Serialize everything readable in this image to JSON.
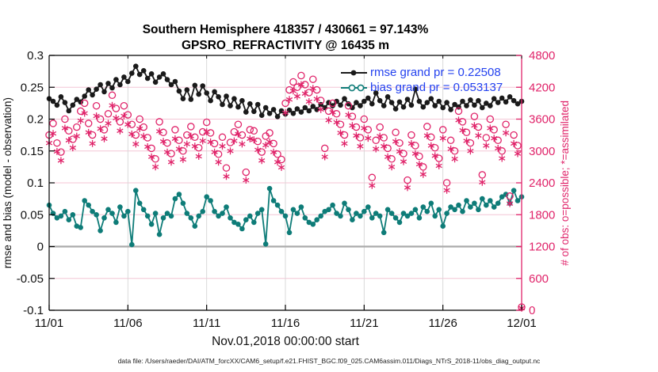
{
  "chart_data": {
    "type": "line",
    "title": "Southern Hemisphere 418357 / 430661 = 97.143%",
    "subtitle": "GPSRO_REFRACTIVITY @ 16435 m",
    "xlabel": "Nov.01,2018 00:00:00 start",
    "ylabel_left": "rmse and bias (model - observation)",
    "ylabel_right": "# of obs: o=possible; *=assimilated",
    "footer": "data file: /Users/raeder/DAI/ATM_forcXX/CAM6_setup/f.e21.FHIST_BGC.f09_025.CAM6assim.011/Diags_NTrS_2018-11/obs_diag_output.nc",
    "legend": [
      {
        "label": "rmse grand pr = 0.22508",
        "series": "rmse"
      },
      {
        "label": "bias grand pr = 0.053137",
        "series": "bias"
      }
    ],
    "axes": {
      "x_ticks": [
        "11/01",
        "11/06",
        "11/11",
        "11/16",
        "11/21",
        "11/26",
        "12/01"
      ],
      "x_tick_days": [
        0,
        5,
        10,
        15,
        20,
        25,
        30
      ],
      "ylim_left": [
        -0.1,
        0.3
      ],
      "yticks_left": [
        -0.1,
        -0.05,
        0,
        0.05,
        0.1,
        0.15,
        0.2,
        0.25,
        0.3
      ],
      "yticks_left_labels": [
        "-0.1",
        "-0.05",
        "0",
        "0.05",
        "0.1",
        "0.15",
        "0.2",
        "0.25",
        "0.3"
      ],
      "ylim_right": [
        0,
        4800
      ],
      "yticks_right": [
        0,
        600,
        1200,
        1800,
        2400,
        3000,
        3600,
        4200,
        4800
      ],
      "grid": true,
      "legend_position": "top-center-inside"
    },
    "colors": {
      "rmse": "#1a1a1a",
      "bias": "#0e7c78",
      "obs": "#e0246a",
      "legend_text": "#2442ef",
      "grid_h": "#f4c6d6",
      "grid_v": "#d6d6d6",
      "zero": "#ababab"
    },
    "x_days": {
      "start": 0,
      "step": 0.25,
      "end": 30
    },
    "series": [
      {
        "name": "rmse",
        "axis": "left",
        "line": true,
        "marker": "filled-circle",
        "values": [
          0.232,
          0.228,
          0.222,
          0.235,
          0.226,
          0.213,
          0.222,
          0.231,
          0.227,
          0.236,
          0.246,
          0.238,
          0.247,
          0.254,
          0.243,
          0.256,
          0.249,
          0.262,
          0.254,
          0.266,
          0.259,
          0.272,
          0.283,
          0.27,
          0.276,
          0.264,
          0.271,
          0.258,
          0.266,
          0.271,
          0.262,
          0.254,
          0.259,
          0.244,
          0.232,
          0.246,
          0.231,
          0.253,
          0.239,
          0.252,
          0.241,
          0.229,
          0.243,
          0.235,
          0.223,
          0.236,
          0.221,
          0.232,
          0.219,
          0.229,
          0.211,
          0.224,
          0.212,
          0.223,
          0.206,
          0.218,
          0.209,
          0.215,
          0.204,
          0.213,
          0.208,
          0.214,
          0.209,
          0.216,
          0.211,
          0.218,
          0.213,
          0.22,
          0.215,
          0.223,
          0.218,
          0.226,
          0.221,
          0.228,
          0.222,
          0.232,
          0.224,
          0.218,
          0.226,
          0.221,
          0.228,
          0.233,
          0.224,
          0.241,
          0.229,
          0.221,
          0.235,
          0.226,
          0.216,
          0.227,
          0.219,
          0.231,
          0.222,
          0.247,
          0.228,
          0.219,
          0.226,
          0.232,
          0.221,
          0.228,
          0.218,
          0.226,
          0.215,
          0.223,
          0.219,
          0.228,
          0.221,
          0.23,
          0.222,
          0.229,
          0.218,
          0.225,
          0.221,
          0.232,
          0.226,
          0.233,
          0.227,
          0.235,
          0.229,
          0.224,
          0.228
        ]
      },
      {
        "name": "bias",
        "axis": "left",
        "line": true,
        "marker": "filled-circle",
        "values": [
          0.065,
          0.052,
          0.045,
          0.048,
          0.055,
          0.042,
          0.05,
          0.032,
          0.03,
          0.072,
          0.065,
          0.055,
          0.05,
          0.025,
          0.045,
          0.058,
          0.052,
          0.038,
          0.062,
          0.048,
          0.055,
          0.003,
          0.088,
          0.068,
          0.058,
          0.048,
          0.035,
          0.052,
          0.019,
          0.045,
          0.052,
          0.048,
          0.075,
          0.082,
          0.068,
          0.052,
          0.045,
          0.032,
          0.048,
          0.055,
          0.078,
          0.072,
          0.055,
          0.048,
          0.052,
          0.062,
          0.045,
          0.038,
          0.035,
          0.028,
          0.042,
          0.048,
          0.038,
          0.052,
          0.058,
          0.004,
          0.091,
          0.072,
          0.065,
          0.055,
          0.048,
          0.022,
          0.058,
          0.052,
          0.062,
          0.045,
          0.038,
          0.035,
          0.042,
          0.048,
          0.055,
          0.058,
          0.065,
          0.052,
          0.048,
          0.068,
          0.058,
          0.042,
          0.052,
          0.048,
          0.055,
          0.062,
          0.045,
          0.052,
          0.048,
          0.022,
          0.058,
          0.052,
          0.045,
          0.038,
          0.052,
          0.048,
          0.052,
          0.058,
          0.045,
          0.062,
          0.055,
          0.068,
          0.048,
          0.058,
          0.032,
          0.052,
          0.062,
          0.058,
          0.065,
          0.055,
          0.072,
          0.062,
          0.068,
          0.058,
          0.075,
          0.065,
          0.072,
          0.062,
          0.068,
          0.078,
          0.082,
          0.068,
          0.088,
          0.072,
          0.078
        ]
      },
      {
        "name": "possible",
        "axis": "right",
        "line": false,
        "marker": "open-circle",
        "values": [
          3300,
          3520,
          3150,
          2980,
          3600,
          3380,
          3220,
          3450,
          3750,
          3900,
          3520,
          3300,
          3850,
          3600,
          3400,
          3700,
          4050,
          3800,
          3550,
          3850,
          3680,
          3500,
          3300,
          3600,
          3450,
          3250,
          3050,
          2850,
          3550,
          3350,
          3150,
          2950,
          3400,
          3200,
          3000,
          3300,
          3460,
          3260,
          3060,
          3360,
          3540,
          3340,
          3140,
          2940,
          3260,
          2680,
          3160,
          3360,
          3500,
          3300,
          2600,
          3400,
          3380,
          3180,
          2980,
          3280,
          3340,
          3140,
          2940,
          2840,
          3900,
          4150,
          4300,
          4200,
          4420,
          4250,
          4100,
          4350,
          4150,
          3950,
          3050,
          3750,
          3900,
          3700,
          3500,
          3300,
          3850,
          3650,
          3450,
          3250,
          3600,
          3400,
          2500,
          3200,
          3450,
          3250,
          3050,
          2850,
          3350,
          3150,
          2950,
          2450,
          3300,
          3100,
          2900,
          2700,
          3460,
          3260,
          3060,
          2860,
          3400,
          2400,
          3200,
          3000,
          3750,
          3550,
          3350,
          3150,
          3650,
          3450,
          2550,
          3250,
          3600,
          3400,
          3200,
          3000,
          3500,
          2150,
          3300,
          3100,
          60
        ]
      },
      {
        "name": "assimilated",
        "axis": "right",
        "line": false,
        "marker": "asterisk",
        "values": [
          3150,
          3330,
          2990,
          2820,
          3430,
          3200,
          3060,
          3280,
          3570,
          3710,
          3350,
          3140,
          3660,
          3420,
          3230,
          3520,
          3860,
          3620,
          3380,
          3660,
          3500,
          3320,
          3130,
          3420,
          3280,
          3080,
          2890,
          2700,
          3370,
          3180,
          2980,
          2790,
          3230,
          3040,
          2840,
          3130,
          3280,
          3090,
          2900,
          3190,
          3360,
          3170,
          2980,
          2790,
          3090,
          2520,
          3000,
          3190,
          3320,
          3130,
          2450,
          3230,
          3210,
          3020,
          2820,
          3110,
          3170,
          2980,
          2790,
          2690,
          3720,
          3970,
          4130,
          4030,
          4250,
          4080,
          3930,
          4180,
          3980,
          3780,
          2890,
          3580,
          3730,
          3540,
          3340,
          3140,
          3680,
          3480,
          3290,
          3090,
          3430,
          3240,
          2350,
          3040,
          3280,
          3090,
          2890,
          2700,
          3180,
          2990,
          2800,
          2310,
          3140,
          2950,
          2750,
          2560,
          3290,
          3100,
          2910,
          2720,
          3240,
          2260,
          3040,
          2850,
          3580,
          3390,
          3190,
          3000,
          3480,
          3290,
          2410,
          3100,
          3430,
          3240,
          3050,
          2860,
          3340,
          2010,
          3140,
          2950,
          40
        ]
      }
    ]
  }
}
